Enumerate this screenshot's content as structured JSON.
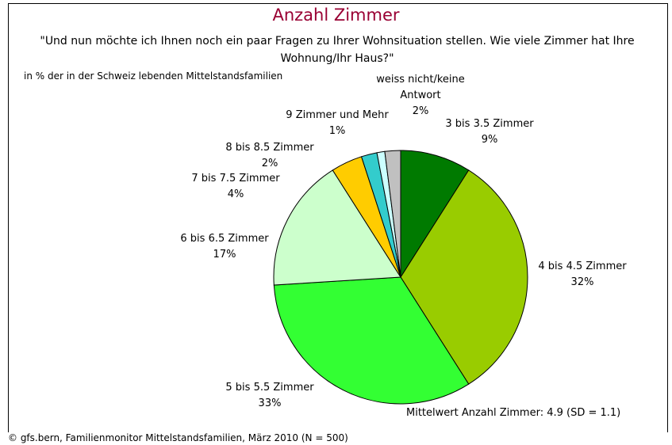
{
  "chart_data": {
    "type": "pie",
    "title": "Anzahl Zimmer",
    "subtitle": "\"Und nun möchte ich Ihnen noch ein paar Fragen zu Ihrer Wohnsituation stellen. Wie viele Zimmer hat Ihre Wohnung/Ihr Haus?\"",
    "unit_note": "in % der in der Schweiz lebenden Mittelstandsfamilien",
    "annotation": "Mittelwert Anzahl Zimmer: 4.9 (SD = 1.1)",
    "source": "© gfs.bern, Familienmonitor Mittelstandsfamilien, März 2010 (N = 500)",
    "categories": [
      "3 bis 3.5 Zimmer",
      "4 bis 4.5 Zimmer",
      "5 bis 5.5 Zimmer",
      "6 bis 6.5 Zimmer",
      "7 bis 7.5 Zimmer",
      "8 bis 8.5 Zimmer",
      "9 Zimmer und Mehr",
      "weiss nicht/keine Antwort"
    ],
    "values": [
      9,
      32,
      33,
      17,
      4,
      2,
      1,
      2
    ],
    "value_labels": [
      "9%",
      "32%",
      "33%",
      "17%",
      "4%",
      "2%",
      "1%",
      "2%"
    ],
    "colors": [
      "#007a00",
      "#99cc00",
      "#33ff33",
      "#ccffcc",
      "#ffcc00",
      "#33cccc",
      "#ccffff",
      "#c0c0c0"
    ]
  }
}
